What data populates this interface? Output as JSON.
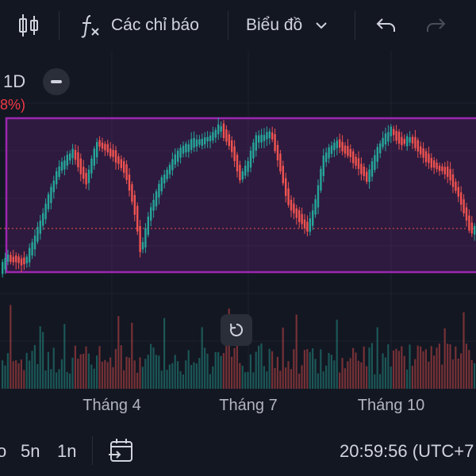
{
  "toolbar": {
    "indicators_label": "Các chỉ báo",
    "chart_type_label": "Biểu đồ"
  },
  "legend": {
    "interval": "1D",
    "change_text": "8%)"
  },
  "axis": {
    "months": [
      "Tháng 4",
      "Tháng 7",
      "Tháng 10"
    ]
  },
  "bottom": {
    "range_partial": "o",
    "range_5y": "5n",
    "range_1y": "1n",
    "clock": "20:59:56 (UTC+7"
  },
  "colors": {
    "up": "#26a69a",
    "down": "#ef5350",
    "rectangle": "#9c27b0",
    "background": "#131722"
  },
  "chart_data": {
    "type": "candlestick",
    "price_range_box": true,
    "candles": [],
    "note_months": [
      "Tháng 4",
      "Tháng 7",
      "Tháng 10"
    ]
  }
}
